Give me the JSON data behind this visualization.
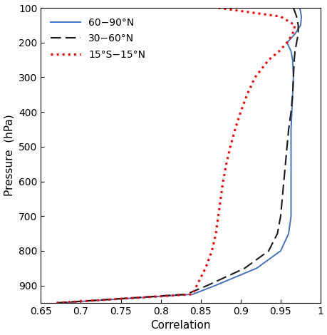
{
  "title": "",
  "xlabel": "Correlation",
  "ylabel": "Pressure  (hPa)",
  "xlim": [
    0.65,
    1.0
  ],
  "ylim": [
    100,
    950
  ],
  "xticks": [
    0.65,
    0.7,
    0.75,
    0.8,
    0.85,
    0.9,
    0.95,
    1.0
  ],
  "xtick_labels": [
    "0.65",
    "0.7",
    "0.75",
    "0.8",
    "0.85",
    "0.9",
    "0.95",
    "1"
  ],
  "yticks": [
    100,
    200,
    300,
    400,
    500,
    600,
    700,
    800,
    900
  ],
  "pressure_levels": [
    100,
    125,
    150,
    175,
    200,
    225,
    250,
    300,
    350,
    400,
    450,
    500,
    550,
    600,
    650,
    700,
    750,
    800,
    850,
    900,
    925,
    950
  ],
  "corr_60_90N": [
    0.974,
    0.976,
    0.975,
    0.968,
    0.958,
    0.963,
    0.965,
    0.966,
    0.965,
    0.964,
    0.963,
    0.963,
    0.963,
    0.963,
    0.963,
    0.963,
    0.96,
    0.95,
    0.92,
    0.868,
    0.84,
    0.672
  ],
  "corr_30_60N": [
    0.966,
    0.97,
    0.972,
    0.972,
    0.97,
    0.968,
    0.967,
    0.966,
    0.965,
    0.963,
    0.96,
    0.958,
    0.956,
    0.954,
    0.952,
    0.95,
    0.946,
    0.935,
    0.905,
    0.858,
    0.832,
    0.668
  ],
  "corr_15S_15N": [
    0.872,
    0.95,
    0.968,
    0.965,
    0.958,
    0.948,
    0.935,
    0.918,
    0.908,
    0.9,
    0.893,
    0.887,
    0.882,
    0.878,
    0.875,
    0.872,
    0.869,
    0.864,
    0.856,
    0.845,
    0.84,
    0.668
  ],
  "color_60_90N": "#4472C4",
  "color_30_60N": "#1a1a1a",
  "color_15S_15N": "#FF0000",
  "legend_labels": [
    "60−90°N",
    "30−60°N",
    "15°S−15°N"
  ],
  "background_color": "#ffffff",
  "figsize": [
    4.6,
    4.7
  ],
  "dpi": 100
}
